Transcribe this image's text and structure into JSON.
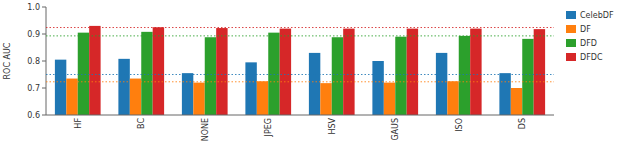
{
  "chart_data": {
    "type": "bar",
    "ylabel": "ROC AUC",
    "categories": [
      "HF",
      "BC",
      "NONE",
      "JPEG",
      "HSV",
      "GAUS",
      "ISO",
      "DS"
    ],
    "series": [
      {
        "name": "CelebDF",
        "color": "#1f77b4",
        "values": [
          0.805,
          0.808,
          0.755,
          0.795,
          0.83,
          0.8,
          0.83,
          0.755
        ],
        "hline": 0.75
      },
      {
        "name": "DF",
        "color": "#ff7f0e",
        "values": [
          0.735,
          0.735,
          0.72,
          0.725,
          0.718,
          0.72,
          0.725,
          0.7
        ],
        "hline": 0.723
      },
      {
        "name": "DFD",
        "color": "#2ca02c",
        "values": [
          0.905,
          0.908,
          0.888,
          0.905,
          0.888,
          0.89,
          0.893,
          0.882
        ],
        "hline": 0.893
      },
      {
        "name": "DFDC",
        "color": "#d62728",
        "values": [
          0.93,
          0.925,
          0.922,
          0.92,
          0.92,
          0.92,
          0.92,
          0.918
        ],
        "hline": 0.924
      }
    ],
    "ylim": [
      0.6,
      1.0
    ],
    "yticks": [
      0.6,
      0.7,
      0.8,
      0.9,
      {
        "value": 1.0,
        "label": "1.0"
      }
    ],
    "grid": false,
    "legend": "right"
  }
}
